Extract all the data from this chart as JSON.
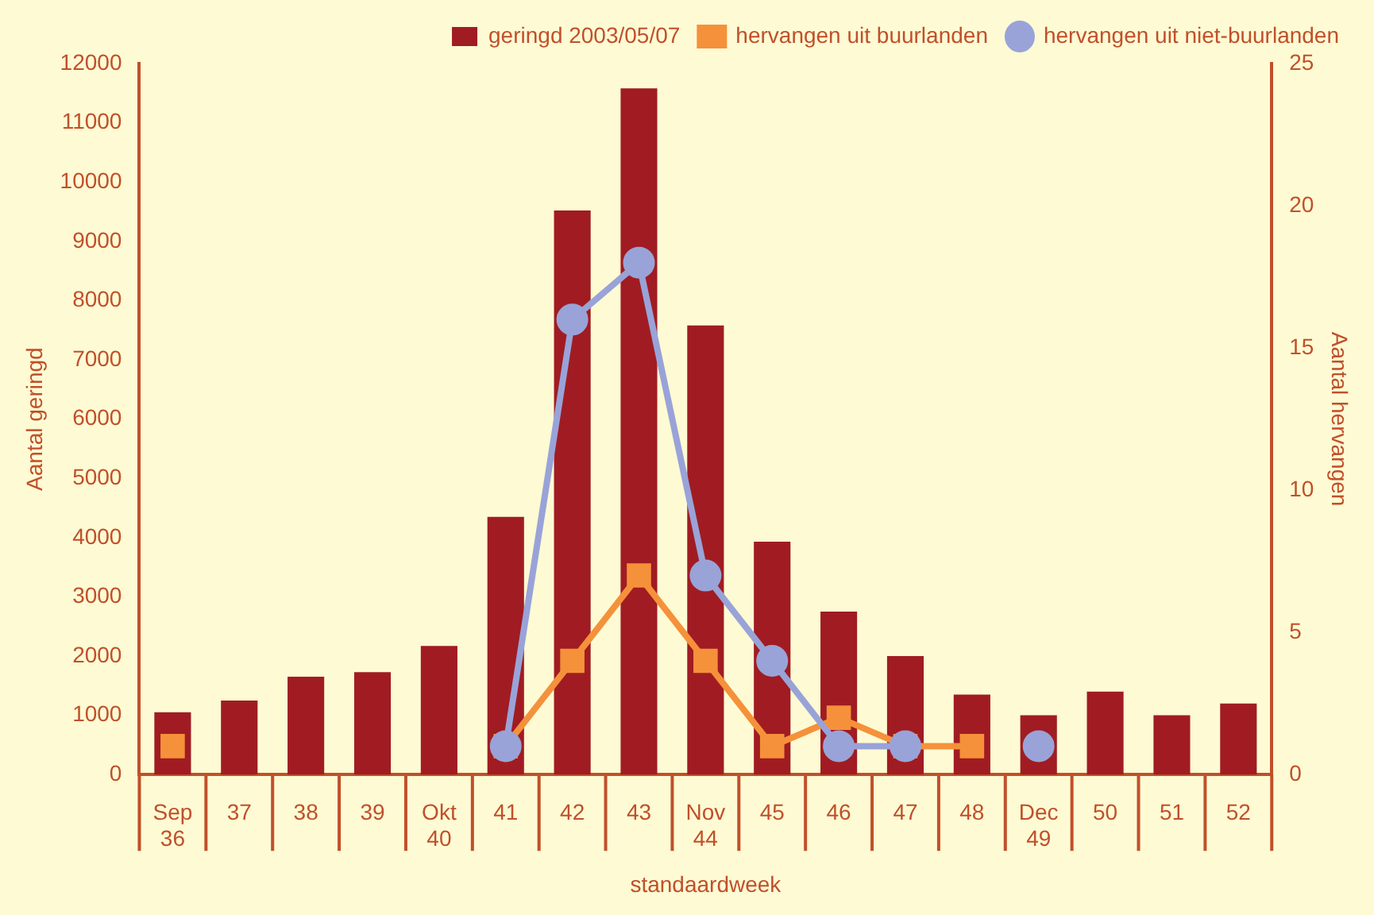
{
  "chart_data": {
    "type": "bar",
    "xlabel": "standaardweek",
    "ylabel": "Aantal geringd",
    "y2label": "Aantal hervangen",
    "categories": [
      "Sep\n36",
      "37",
      "38",
      "39",
      "Okt\n40",
      "41",
      "42",
      "43",
      "Nov\n44",
      "45",
      "46",
      "47",
      "48",
      "Dec\n49",
      "50",
      "51",
      "52"
    ],
    "series": [
      {
        "name": "geringd 2003/05/07",
        "color": "#a01c22",
        "values": [
          1050,
          1250,
          1650,
          1730,
          2170,
          4350,
          9520,
          11580,
          7580,
          3930,
          2750,
          2000,
          1350,
          1000,
          1400,
          1000,
          1200
        ]
      },
      {
        "name": "hervangen uit buurlanden",
        "type": "line",
        "axis": "y2",
        "marker": "square",
        "color": "#f5913a",
        "values": [
          1,
          null,
          null,
          null,
          null,
          1,
          4,
          7,
          4,
          1,
          2,
          1,
          1,
          null,
          null,
          null,
          null
        ]
      },
      {
        "name": "hervangen uit niet-buurlanden",
        "type": "line",
        "axis": "y2",
        "marker": "circle",
        "color": "#99a3d8",
        "values": [
          null,
          null,
          null,
          null,
          null,
          1,
          16,
          18,
          7,
          4,
          1,
          1,
          null,
          1,
          null,
          null,
          null
        ]
      }
    ],
    "ylim": [
      0,
      12000
    ],
    "yticks": [
      0,
      1000,
      2000,
      3000,
      4000,
      5000,
      6000,
      7000,
      8000,
      9000,
      10000,
      11000,
      12000
    ],
    "y2lim": [
      0,
      25
    ],
    "y2ticks": [
      0,
      5,
      10,
      15,
      20,
      25
    ],
    "legend": "top right",
    "grid": false
  }
}
